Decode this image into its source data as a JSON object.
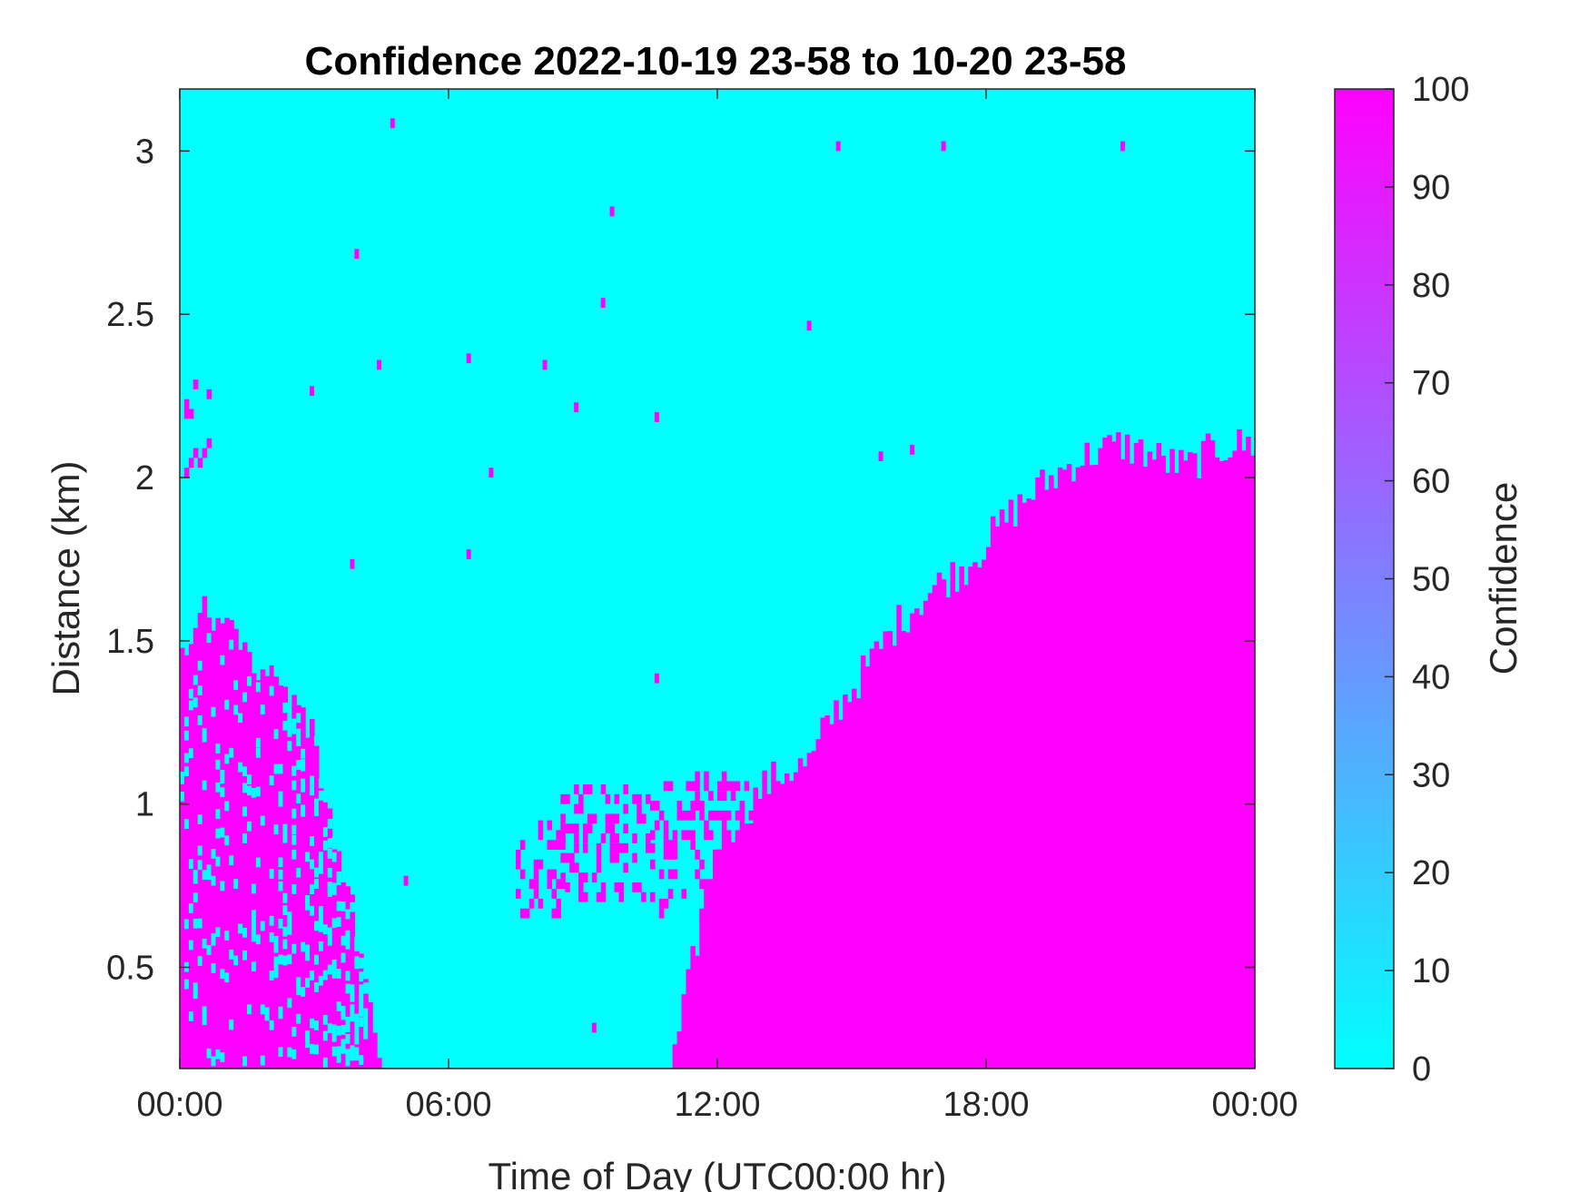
{
  "chart_data": {
    "type": "heatmap",
    "title": "Confidence 2022-10-19 23-58 to 10-20 23-58",
    "xlabel": "Time of Day (UTC00:00 hr)",
    "ylabel": "Distance (km)",
    "x_ticks": [
      "00:00",
      "06:00",
      "12:00",
      "18:00",
      "00:00"
    ],
    "x_tick_hours": [
      0,
      6,
      12,
      18,
      24
    ],
    "xlim_hours": [
      0,
      24
    ],
    "y_ticks": [
      "0.5",
      "1",
      "1.5",
      "2",
      "2.5",
      "3"
    ],
    "y_tick_values": [
      0.5,
      1,
      1.5,
      2,
      2.5,
      3
    ],
    "ylim_km": [
      0.19,
      3.19
    ],
    "colorbar": {
      "label": "Confidence",
      "ticks": [
        "0",
        "10",
        "20",
        "30",
        "40",
        "50",
        "60",
        "70",
        "80",
        "90",
        "100"
      ],
      "tick_values": [
        0,
        10,
        20,
        30,
        40,
        50,
        60,
        70,
        80,
        90,
        100
      ],
      "range": [
        0,
        100
      ],
      "colormap": "cool",
      "color_low": "#00ffff",
      "color_high": "#ff00ff"
    },
    "background_value": 0,
    "high_value": 100,
    "high_confidence_top_km": {
      "hours": [
        0,
        0.5,
        1,
        1.5,
        2,
        2.5,
        3,
        3.5,
        4,
        4.5,
        5,
        6,
        7,
        8,
        9,
        10,
        11,
        12,
        12.5,
        13,
        13.5,
        14,
        14.2,
        14.3,
        14.6,
        15,
        15.5,
        16,
        16.5,
        17,
        17.5,
        18,
        18.5,
        19,
        19.5,
        20,
        20.5,
        21,
        21.5,
        22,
        22.5,
        23,
        23.5,
        24
      ],
      "top_km": [
        1.45,
        1.6,
        1.55,
        1.45,
        1.4,
        1.32,
        1.2,
        0.9,
        0.6,
        0.19,
        0.19,
        0.19,
        0.19,
        0.19,
        0.19,
        0.19,
        0.19,
        0.9,
        0.95,
        1.05,
        1.1,
        1.12,
        1.15,
        1.2,
        1.28,
        1.35,
        1.45,
        1.55,
        1.62,
        1.68,
        1.72,
        1.8,
        1.88,
        1.95,
        2.0,
        2.05,
        2.08,
        2.1,
        2.08,
        2.05,
        2.03,
        2.08,
        2.1,
        2.1
      ]
    },
    "scattered_clusters": [
      {
        "hour_from": 0.1,
        "hour_to": 0.7,
        "km_from": 2.0,
        "km_to": 2.28
      },
      {
        "hour_from": 7.5,
        "hour_to": 8.5,
        "km_from": 0.65,
        "km_to": 0.95
      },
      {
        "hour_from": 8.5,
        "hour_to": 10.5,
        "km_from": 0.7,
        "km_to": 1.05
      },
      {
        "hour_from": 10.5,
        "hour_to": 12.7,
        "km_from": 0.65,
        "km_to": 1.1
      }
    ],
    "isolated_points": [
      {
        "hour": 4.7,
        "km": 3.07
      },
      {
        "hour": 14.65,
        "km": 3.0
      },
      {
        "hour": 17.0,
        "km": 3.0
      },
      {
        "hour": 21.0,
        "km": 3.0
      },
      {
        "hour": 9.6,
        "km": 2.8
      },
      {
        "hour": 3.9,
        "km": 2.67
      },
      {
        "hour": 9.4,
        "km": 2.52
      },
      {
        "hour": 14.0,
        "km": 2.45
      },
      {
        "hour": 6.4,
        "km": 2.35
      },
      {
        "hour": 4.4,
        "km": 2.33
      },
      {
        "hour": 8.1,
        "km": 2.33
      },
      {
        "hour": 2.9,
        "km": 2.25
      },
      {
        "hour": 8.8,
        "km": 2.2
      },
      {
        "hour": 10.6,
        "km": 2.17
      },
      {
        "hour": 6.9,
        "km": 2.0
      },
      {
        "hour": 15.6,
        "km": 2.05
      },
      {
        "hour": 16.3,
        "km": 2.07
      },
      {
        "hour": 3.8,
        "km": 1.72
      },
      {
        "hour": 6.4,
        "km": 1.75
      },
      {
        "hour": 10.6,
        "km": 1.37
      },
      {
        "hour": 5.0,
        "km": 0.75
      },
      {
        "hour": 9.2,
        "km": 0.3
      },
      {
        "hour": 13.0,
        "km": 0.48
      }
    ]
  }
}
